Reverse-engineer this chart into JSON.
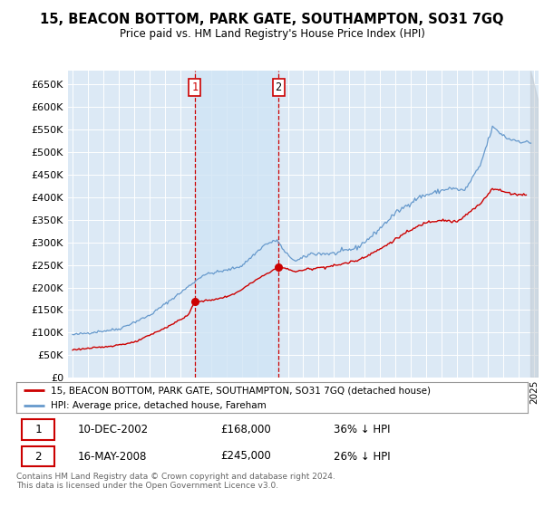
{
  "title": "15, BEACON BOTTOM, PARK GATE, SOUTHAMPTON, SO31 7GQ",
  "subtitle": "Price paid vs. HM Land Registry's House Price Index (HPI)",
  "red_label": "15, BEACON BOTTOM, PARK GATE, SOUTHAMPTON, SO31 7GQ (detached house)",
  "blue_label": "HPI: Average price, detached house, Fareham",
  "transaction1_date": "10-DEC-2002",
  "transaction1_price": "£168,000",
  "transaction1_hpi": "36% ↓ HPI",
  "transaction2_date": "16-MAY-2008",
  "transaction2_price": "£245,000",
  "transaction2_hpi": "26% ↓ HPI",
  "footer": "Contains HM Land Registry data © Crown copyright and database right 2024.\nThis data is licensed under the Open Government Licence v3.0.",
  "ylim": [
    0,
    680000
  ],
  "yticks": [
    0,
    50000,
    100000,
    150000,
    200000,
    250000,
    300000,
    350000,
    400000,
    450000,
    500000,
    550000,
    600000,
    650000
  ],
  "plot_bg": "#dce9f5",
  "grid_color": "#ffffff",
  "red_color": "#cc0000",
  "blue_color": "#6699cc",
  "shade_color": "#d0e4f5",
  "vline1_x": 2002.94,
  "vline2_x": 2008.38,
  "marker1_x": 2002.94,
  "marker1_y": 168000,
  "marker2_x": 2008.38,
  "marker2_y": 245000,
  "xmin": 1994.7,
  "xmax": 2025.3
}
